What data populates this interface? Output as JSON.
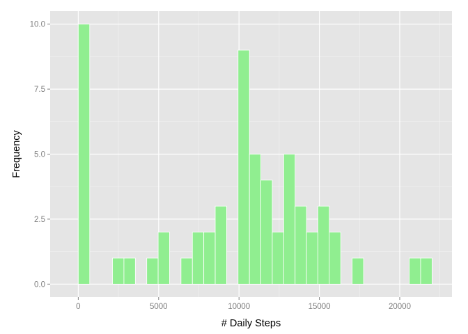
{
  "chart_data": {
    "type": "bar",
    "xlabel": "# Daily Steps",
    "ylabel": "Frequency",
    "xlim": [
      -1750,
      23250
    ],
    "ylim": [
      -0.5,
      10.5
    ],
    "x_ticks": [
      0,
      5000,
      10000,
      15000,
      20000
    ],
    "x_tick_labels": [
      "0",
      "5000",
      "10000",
      "15000",
      "20000"
    ],
    "y_ticks": [
      0,
      2.5,
      5,
      7.5,
      10
    ],
    "y_tick_labels": [
      "0.0",
      "2.5",
      "5.0",
      "7.5",
      "10.0"
    ],
    "grid": true,
    "bin_width": 710,
    "bins": [
      {
        "x": 355,
        "count": 10
      },
      {
        "x": 2485,
        "count": 1
      },
      {
        "x": 3195,
        "count": 1
      },
      {
        "x": 4615,
        "count": 1
      },
      {
        "x": 5325,
        "count": 2
      },
      {
        "x": 6745,
        "count": 1
      },
      {
        "x": 7455,
        "count": 2
      },
      {
        "x": 8165,
        "count": 2
      },
      {
        "x": 8875,
        "count": 3
      },
      {
        "x": 10295,
        "count": 9
      },
      {
        "x": 11005,
        "count": 5
      },
      {
        "x": 11715,
        "count": 4
      },
      {
        "x": 12425,
        "count": 2
      },
      {
        "x": 13135,
        "count": 5
      },
      {
        "x": 13845,
        "count": 3
      },
      {
        "x": 14555,
        "count": 2
      },
      {
        "x": 15265,
        "count": 3
      },
      {
        "x": 15975,
        "count": 2
      },
      {
        "x": 17395,
        "count": 1
      },
      {
        "x": 20945,
        "count": 1
      },
      {
        "x": 21655,
        "count": 1
      }
    ],
    "colors": {
      "panel": "#e5e5e5",
      "grid_major": "#ffffff",
      "grid_minor": "#f2f2f2",
      "bar_fill": "#90ee90",
      "bar_outline": "#ffffff",
      "tick_label": "#7f7f7f"
    }
  }
}
